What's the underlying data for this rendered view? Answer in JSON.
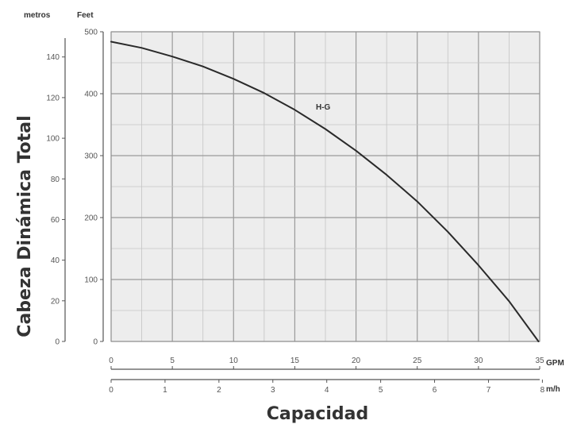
{
  "chart_data": {
    "type": "line",
    "title": "",
    "xlabel": "Capacidad",
    "ylabel": "Cabeza Dinámica Total",
    "y_units": {
      "left": "metros",
      "right": "Feet"
    },
    "x_units": {
      "primary": "GPM",
      "secondary": "m/h"
    },
    "xlim": [
      0,
      35
    ],
    "ylim_feet": [
      0,
      500
    ],
    "ylim_metros": [
      0,
      152.4
    ],
    "x_ticks_gpm": [
      {
        "value": 0,
        "label": "0"
      },
      {
        "value": 5,
        "label": "5"
      },
      {
        "value": 10,
        "label": "10"
      },
      {
        "value": 15,
        "label": "15"
      },
      {
        "value": 20,
        "label": "20"
      },
      {
        "value": 25,
        "label": "25"
      },
      {
        "value": 30,
        "label": "30"
      },
      {
        "value": 35,
        "label": "35"
      }
    ],
    "x_ticks_m3h": [
      {
        "value": 0,
        "label": "0"
      },
      {
        "value": 1,
        "label": "1"
      },
      {
        "value": 2,
        "label": "2"
      },
      {
        "value": 3,
        "label": "3"
      },
      {
        "value": 4,
        "label": "4"
      },
      {
        "value": 5,
        "label": "5"
      },
      {
        "value": 6,
        "label": "6"
      },
      {
        "value": 7,
        "label": "7"
      },
      {
        "value": 8,
        "label": "8"
      }
    ],
    "y_ticks_feet": [
      {
        "value": 0,
        "label": "0"
      },
      {
        "value": 100,
        "label": "100"
      },
      {
        "value": 200,
        "label": "200"
      },
      {
        "value": 300,
        "label": "300"
      },
      {
        "value": 400,
        "label": "400"
      },
      {
        "value": 500,
        "label": "500"
      }
    ],
    "y_ticks_metros": [
      {
        "value": 0,
        "label": "0"
      },
      {
        "value": 20,
        "label": "20"
      },
      {
        "value": 40,
        "label": "40"
      },
      {
        "value": 60,
        "label": "60"
      },
      {
        "value": 80,
        "label": "80"
      },
      {
        "value": 100,
        "label": "100"
      },
      {
        "value": 120,
        "label": "120"
      },
      {
        "value": 140,
        "label": "140"
      }
    ],
    "series": [
      {
        "name": "H-G",
        "x_gpm": [
          0,
          2.5,
          5,
          7.5,
          10,
          12.5,
          15,
          17.5,
          20,
          22.5,
          25,
          27.5,
          30,
          32.5,
          34.9
        ],
        "y_feet": [
          484,
          474,
          460,
          444,
          424,
          401,
          374,
          343,
          308,
          269,
          226,
          177,
          123,
          65,
          0
        ]
      }
    ],
    "grid": true,
    "legend": "none"
  }
}
